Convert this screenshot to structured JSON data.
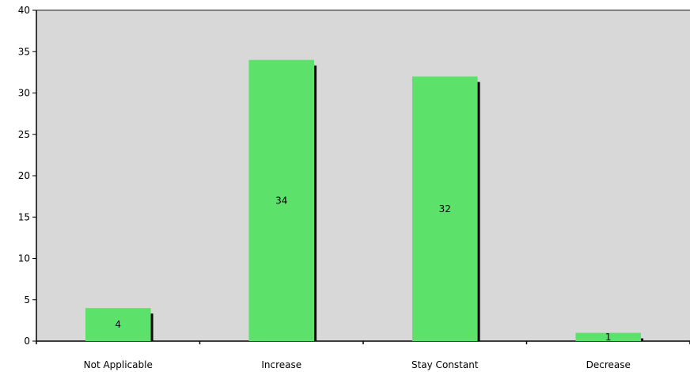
{
  "chart_data": {
    "type": "bar",
    "categories": [
      "Not Applicable",
      "Increase",
      "Stay Constant",
      "Decrease"
    ],
    "values": [
      4,
      34,
      32,
      1
    ],
    "data_labels": [
      "4",
      "34",
      "32",
      "1"
    ],
    "title": "",
    "xlabel": "",
    "ylabel": "",
    "ylim": [
      0,
      40
    ],
    "yticks": [
      0,
      5,
      10,
      15,
      20,
      25,
      30,
      35,
      40
    ],
    "grid": false,
    "legend": "none",
    "colors": {
      "bar": "#5ce26b",
      "bar_shadow": "#000000",
      "plot_background": "#d8d8d8",
      "axis": "#000000",
      "top_border": "#808080"
    }
  }
}
